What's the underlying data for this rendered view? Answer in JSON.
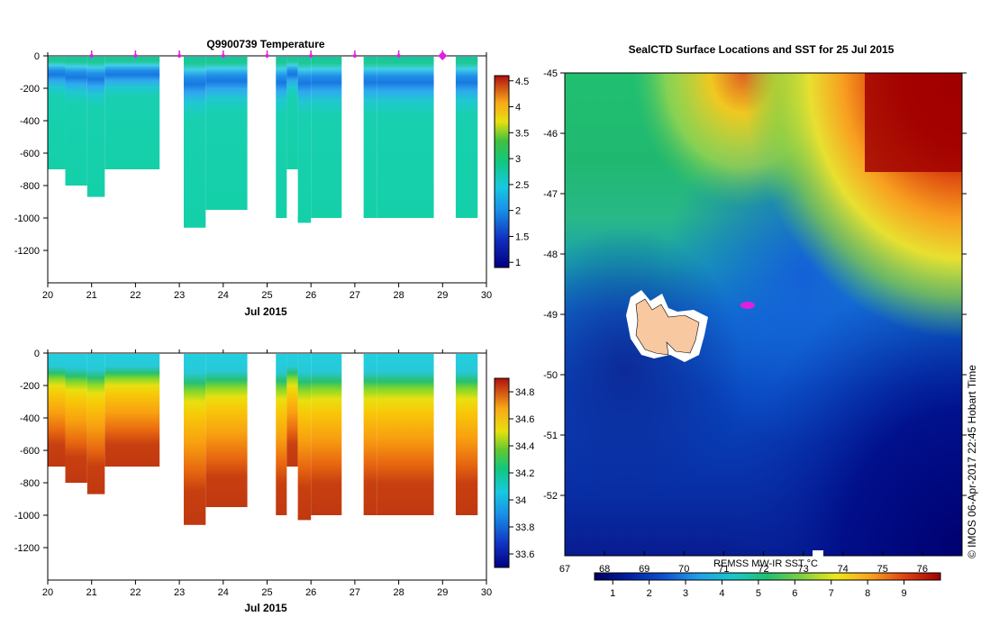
{
  "chart_data": [
    {
      "type": "heatmap",
      "title": "Q9900739  Temperature",
      "xlabel": "Jul 2015",
      "ylabel": "",
      "xlim": [
        20,
        30
      ],
      "ylim": [
        -1400,
        0
      ],
      "x_ticks": [
        "20",
        "21",
        "22",
        "23",
        "24",
        "25",
        "26",
        "27",
        "28",
        "29",
        "30"
      ],
      "y_ticks": [
        "0",
        "-200",
        "-400",
        "-600",
        "-800",
        "-1000",
        "-1200"
      ],
      "colorbar": {
        "min": 0.9,
        "max": 4.6,
        "ticks": [
          "1",
          "1.5",
          "2",
          "2.5",
          "3",
          "3.5",
          "4",
          "4.5"
        ]
      },
      "profiles": [
        {
          "x0": 20.0,
          "x1": 20.4,
          "bottom": -700
        },
        {
          "x0": 20.4,
          "x1": 20.9,
          "bottom": -800
        },
        {
          "x0": 20.9,
          "x1": 21.3,
          "bottom": -870
        },
        {
          "x0": 21.3,
          "x1": 22.55,
          "bottom": -700
        },
        {
          "x0": 23.1,
          "x1": 23.6,
          "bottom": -1060
        },
        {
          "x0": 23.6,
          "x1": 24.55,
          "bottom": -950
        },
        {
          "x0": 25.2,
          "x1": 25.45,
          "bottom": -1000
        },
        {
          "x0": 25.45,
          "x1": 25.7,
          "bottom": -700
        },
        {
          "x0": 25.7,
          "x1": 26.0,
          "bottom": -1030
        },
        {
          "x0": 26.0,
          "x1": 26.7,
          "bottom": -1000
        },
        {
          "x0": 27.2,
          "x1": 27.5,
          "bottom": -1000
        },
        {
          "x0": 27.5,
          "x1": 28.8,
          "bottom": -1000
        },
        {
          "x0": 29.3,
          "x1": 29.8,
          "bottom": -1000
        }
      ],
      "gap_band": {
        "x0": 25.45,
        "x1": 25.7,
        "top": -700,
        "bottom": -1000
      },
      "surface_markers": [
        21.0,
        22.0,
        23.0,
        24.0,
        25.0,
        26.0,
        27.0,
        28.0,
        29.0
      ],
      "highlight_marker": 29.0,
      "marker_color": "#e020e0"
    },
    {
      "type": "heatmap",
      "title": "",
      "xlabel": "Jul 2015",
      "ylabel": "",
      "xlim": [
        20,
        30
      ],
      "ylim": [
        -1400,
        0
      ],
      "x_ticks": [
        "20",
        "21",
        "22",
        "23",
        "24",
        "25",
        "26",
        "27",
        "28",
        "29",
        "30"
      ],
      "y_ticks": [
        "0",
        "-200",
        "-400",
        "-600",
        "-800",
        "-1000",
        "-1200"
      ],
      "colorbar": {
        "min": 33.5,
        "max": 34.9,
        "ticks": [
          "33.6",
          "33.8",
          "34",
          "34.2",
          "34.4",
          "34.6",
          "34.8"
        ]
      }
    },
    {
      "type": "heatmap",
      "title": "SealCTD Surface Locations and SST for 25 Jul 2015",
      "xlim": [
        67,
        77
      ],
      "ylim": [
        -53,
        -45
      ],
      "x_ticks": [
        "67",
        "68",
        "69",
        "70",
        "71",
        "72",
        "73",
        "74",
        "75",
        "76"
      ],
      "y_ticks": [
        "-45",
        "-46",
        "-47",
        "-48",
        "-49",
        "-50",
        "-51",
        "-52"
      ],
      "colorbar": {
        "label": "REMSS MW-IR SST °C",
        "min": 0.5,
        "max": 10,
        "ticks": [
          "1",
          "2",
          "3",
          "4",
          "5",
          "6",
          "7",
          "8",
          "9"
        ]
      },
      "island": {
        "lon": 69.5,
        "lat": -49.3,
        "color": "#f8c8a0"
      },
      "seal_location": {
        "lon": 71.6,
        "lat": -48.85,
        "color": "#e020e0"
      }
    }
  ],
  "credit": "©  IMOS 06-Apr-2017 22:45 Hobart Time"
}
